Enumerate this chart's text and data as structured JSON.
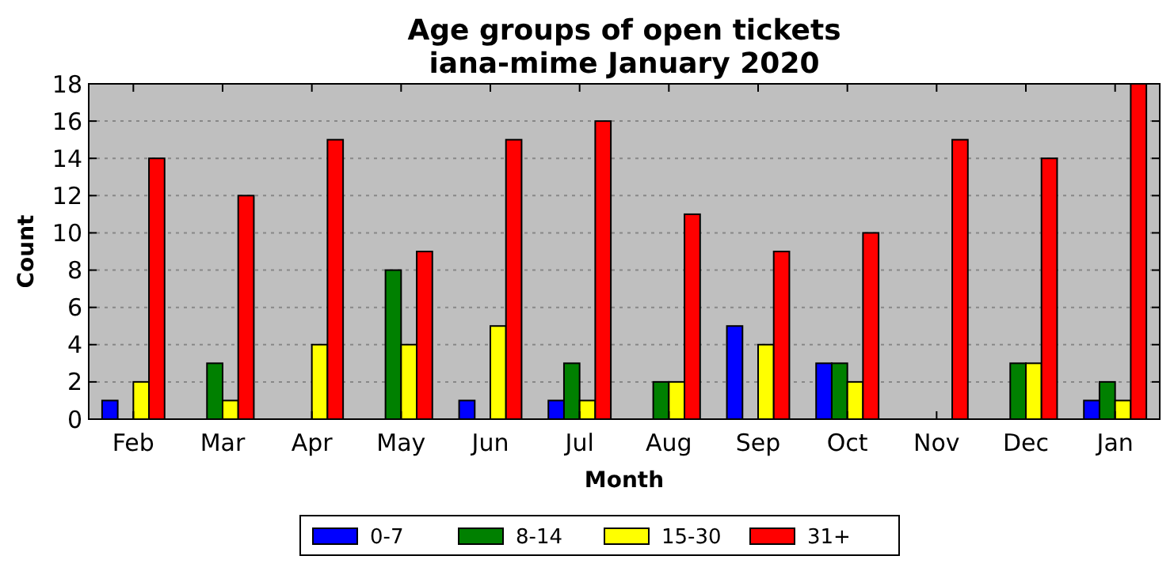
{
  "chart_data": {
    "type": "bar",
    "title": "Age groups of open tickets\niana-mime January 2020",
    "xlabel": "Month",
    "ylabel": "Count",
    "categories": [
      "Feb",
      "Mar",
      "Apr",
      "May",
      "Jun",
      "Jul",
      "Aug",
      "Sep",
      "Oct",
      "Nov",
      "Dec",
      "Jan"
    ],
    "series": [
      {
        "name": "0-7",
        "color": "#0000ff",
        "values": [
          1,
          0,
          0,
          0,
          1,
          1,
          0,
          5,
          3,
          0,
          0,
          1
        ]
      },
      {
        "name": "8-14",
        "color": "#008000",
        "values": [
          0,
          3,
          0,
          8,
          0,
          3,
          2,
          0,
          3,
          0,
          3,
          2
        ]
      },
      {
        "name": "15-30",
        "color": "#ffff00",
        "values": [
          2,
          1,
          4,
          4,
          5,
          1,
          2,
          4,
          2,
          0,
          3,
          1
        ]
      },
      {
        "name": "31+",
        "color": "#ff0000",
        "values": [
          14,
          12,
          15,
          9,
          15,
          16,
          11,
          9,
          10,
          15,
          14,
          18
        ]
      }
    ],
    "ylim": [
      0,
      18
    ],
    "yticks": [
      0,
      2,
      4,
      6,
      8,
      10,
      12,
      14,
      16,
      18
    ],
    "grid": "y",
    "legend": "bottom"
  }
}
